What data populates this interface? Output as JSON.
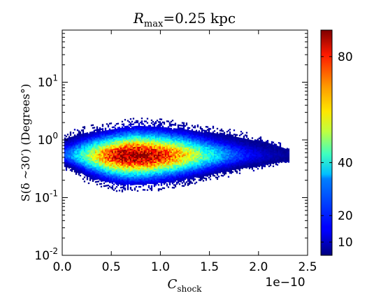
{
  "chart_data": {
    "type": "heatmap",
    "title": {
      "symbol": "R",
      "sub": "max",
      "rest": "=0.25 kpc"
    },
    "xlabel": {
      "symbol": "C",
      "sub": "shock"
    },
    "ylabel": "S(δ ~30′) (Degrees°)",
    "x_multiplier": "1e−10",
    "xlim": [
      0.0,
      2.5
    ],
    "ylim": [
      0.01,
      80
    ],
    "yscale": "log",
    "x_ticks": [
      {
        "value": 0.0,
        "label": "0.0"
      },
      {
        "value": 0.5,
        "label": "0.5"
      },
      {
        "value": 1.0,
        "label": "1.0"
      },
      {
        "value": 1.5,
        "label": "1.5"
      },
      {
        "value": 2.0,
        "label": "2.0"
      },
      {
        "value": 2.5,
        "label": "2.5"
      }
    ],
    "y_ticks": [
      {
        "value": 0.01,
        "base": "10",
        "exp": "-2"
      },
      {
        "value": 0.1,
        "base": "10",
        "exp": "-1"
      },
      {
        "value": 1,
        "base": "10",
        "exp": "0"
      },
      {
        "value": 10,
        "base": "10",
        "exp": "1"
      }
    ],
    "colorbar": {
      "colormap": "jet",
      "range": [
        5,
        90
      ],
      "ticks": [
        {
          "value": 10,
          "label": "10"
        },
        {
          "value": 20,
          "label": "20"
        },
        {
          "value": 40,
          "label": "40"
        },
        {
          "value": 80,
          "label": "80"
        }
      ]
    },
    "distribution": {
      "x_start": 0.02,
      "x_end": 2.3,
      "peak_x": 0.7,
      "median_y": 0.55,
      "peak_count": 88,
      "profile": [
        {
          "x": 0.0,
          "y_low": 0.35,
          "y_high": 1.2
        },
        {
          "x": 0.25,
          "y_low": 0.2,
          "y_high": 1.6
        },
        {
          "x": 0.5,
          "y_low": 0.15,
          "y_high": 1.9
        },
        {
          "x": 0.75,
          "y_low": 0.14,
          "y_high": 2.2
        },
        {
          "x": 1.0,
          "y_low": 0.15,
          "y_high": 2.1
        },
        {
          "x": 1.25,
          "y_low": 0.18,
          "y_high": 1.9
        },
        {
          "x": 1.5,
          "y_low": 0.22,
          "y_high": 1.6
        },
        {
          "x": 1.75,
          "y_low": 0.28,
          "y_high": 1.35
        },
        {
          "x": 2.0,
          "y_low": 0.33,
          "y_high": 1.1
        },
        {
          "x": 2.3,
          "y_low": 0.42,
          "y_high": 0.75
        }
      ]
    }
  }
}
